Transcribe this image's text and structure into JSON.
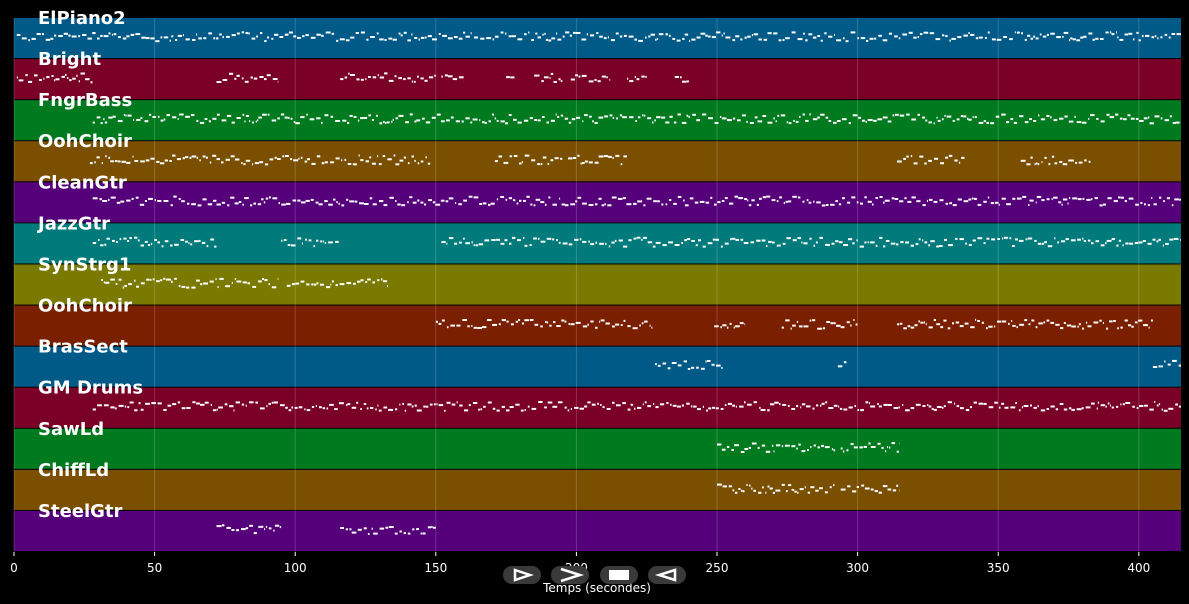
{
  "colors": {
    "background": "#000000",
    "label": "#ffffff",
    "notes": "#ffffff",
    "grid": "#ffffff"
  },
  "tracks": [
    {
      "name": "ElPiano2",
      "color": "#005a87",
      "segments": [
        [
          1,
          415
        ]
      ]
    },
    {
      "name": "Bright",
      "color": "#7a0028",
      "segments": [
        [
          1,
          28
        ],
        [
          72,
          94
        ],
        [
          116,
          150
        ],
        [
          152,
          160
        ],
        [
          175,
          178
        ],
        [
          185,
          195
        ],
        [
          198,
          212
        ],
        [
          218,
          225
        ],
        [
          235,
          240
        ]
      ]
    },
    {
      "name": "FngrBass",
      "color": "#007a1f",
      "segments": [
        [
          28,
          415
        ]
      ]
    },
    {
      "name": "OohChoir",
      "color": "#7a5000",
      "segments": [
        [
          27,
          148
        ],
        [
          171,
          195
        ],
        [
          197,
          218
        ],
        [
          314,
          338
        ],
        [
          358,
          383
        ]
      ]
    },
    {
      "name": "CleanGtr",
      "color": "#55007a",
      "segments": [
        [
          28,
          415
        ]
      ]
    },
    {
      "name": "JazzGtr",
      "color": "#007a7a",
      "segments": [
        [
          28,
          72
        ],
        [
          95,
          116
        ],
        [
          152,
          415
        ]
      ]
    },
    {
      "name": "SynStrg1",
      "color": "#7a7a00",
      "segments": [
        [
          31,
          94
        ],
        [
          97,
          133
        ]
      ]
    },
    {
      "name": "OohChoir",
      "color": "#7a1f00",
      "segments": [
        [
          150,
          227
        ],
        [
          249,
          260
        ],
        [
          273,
          300
        ],
        [
          314,
          405
        ]
      ]
    },
    {
      "name": "BrasSect",
      "color": "#005a87",
      "segments": [
        [
          228,
          252
        ],
        [
          293,
          296
        ],
        [
          405,
          415
        ]
      ]
    },
    {
      "name": "GM Drums",
      "color": "#7a0028",
      "segments": [
        [
          28,
          415
        ]
      ]
    },
    {
      "name": "SawLd",
      "color": "#007a1f",
      "segments": [
        [
          250,
          292
        ],
        [
          294,
          315
        ]
      ]
    },
    {
      "name": "ChiffLd",
      "color": "#7a5000",
      "segments": [
        [
          250,
          292
        ],
        [
          294,
          315
        ]
      ]
    },
    {
      "name": "SteelGtr",
      "color": "#55007a",
      "segments": [
        [
          72,
          95
        ],
        [
          116,
          150
        ]
      ]
    }
  ],
  "axis": {
    "xlabel": "Temps (secondes)",
    "xlim": [
      0,
      415
    ],
    "ticks": [
      0,
      50,
      100,
      150,
      200,
      250,
      300,
      350,
      400
    ],
    "tick_labels": [
      "0",
      "50",
      "100",
      "150",
      "200",
      "250",
      "300",
      "350",
      "400"
    ]
  },
  "controls": [
    {
      "name": "play-button",
      "icon": "play-outline-icon"
    },
    {
      "name": "forward-button",
      "icon": "chevron-right-icon"
    },
    {
      "name": "stop-button",
      "icon": "stop-icon"
    },
    {
      "name": "back-button",
      "icon": "chevron-left-icon"
    }
  ]
}
